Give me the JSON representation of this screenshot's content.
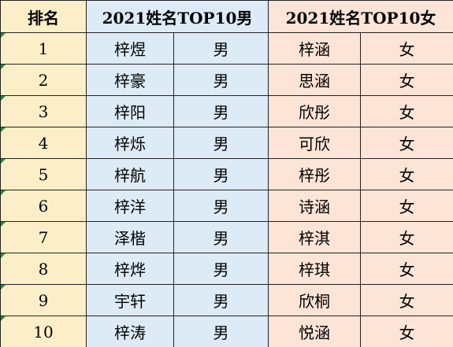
{
  "header": {
    "rank": "排名",
    "boys": "2021姓名TOP10男",
    "girls": "2021姓名TOP10女"
  },
  "rows": [
    {
      "rank": "1",
      "boy": "梓煜",
      "boy_sex": "男",
      "girl": "梓涵",
      "girl_sex": "女"
    },
    {
      "rank": "2",
      "boy": "梓豪",
      "boy_sex": "男",
      "girl": "思涵",
      "girl_sex": "女"
    },
    {
      "rank": "3",
      "boy": "梓阳",
      "boy_sex": "男",
      "girl": "欣彤",
      "girl_sex": "女"
    },
    {
      "rank": "4",
      "boy": "梓烁",
      "boy_sex": "男",
      "girl": "可欣",
      "girl_sex": "女"
    },
    {
      "rank": "5",
      "boy": "梓航",
      "boy_sex": "男",
      "girl": "梓彤",
      "girl_sex": "女"
    },
    {
      "rank": "6",
      "boy": "梓洋",
      "boy_sex": "男",
      "girl": "诗涵",
      "girl_sex": "女"
    },
    {
      "rank": "7",
      "boy": "泽楷",
      "boy_sex": "男",
      "girl": "梓淇",
      "girl_sex": "女"
    },
    {
      "rank": "8",
      "boy": "梓烨",
      "boy_sex": "男",
      "girl": "梓琪",
      "girl_sex": "女"
    },
    {
      "rank": "9",
      "boy": "宇轩",
      "boy_sex": "男",
      "girl": "欣桐",
      "girl_sex": "女"
    },
    {
      "rank": "10",
      "boy": "梓涛",
      "boy_sex": "男",
      "girl": "悦涵",
      "girl_sex": "女"
    }
  ],
  "colors": {
    "rank_bg": "#fcefc7",
    "boys_bg": "#ddebf7",
    "girls_bg": "#fce4d6",
    "marker": "#1e8c3a"
  }
}
